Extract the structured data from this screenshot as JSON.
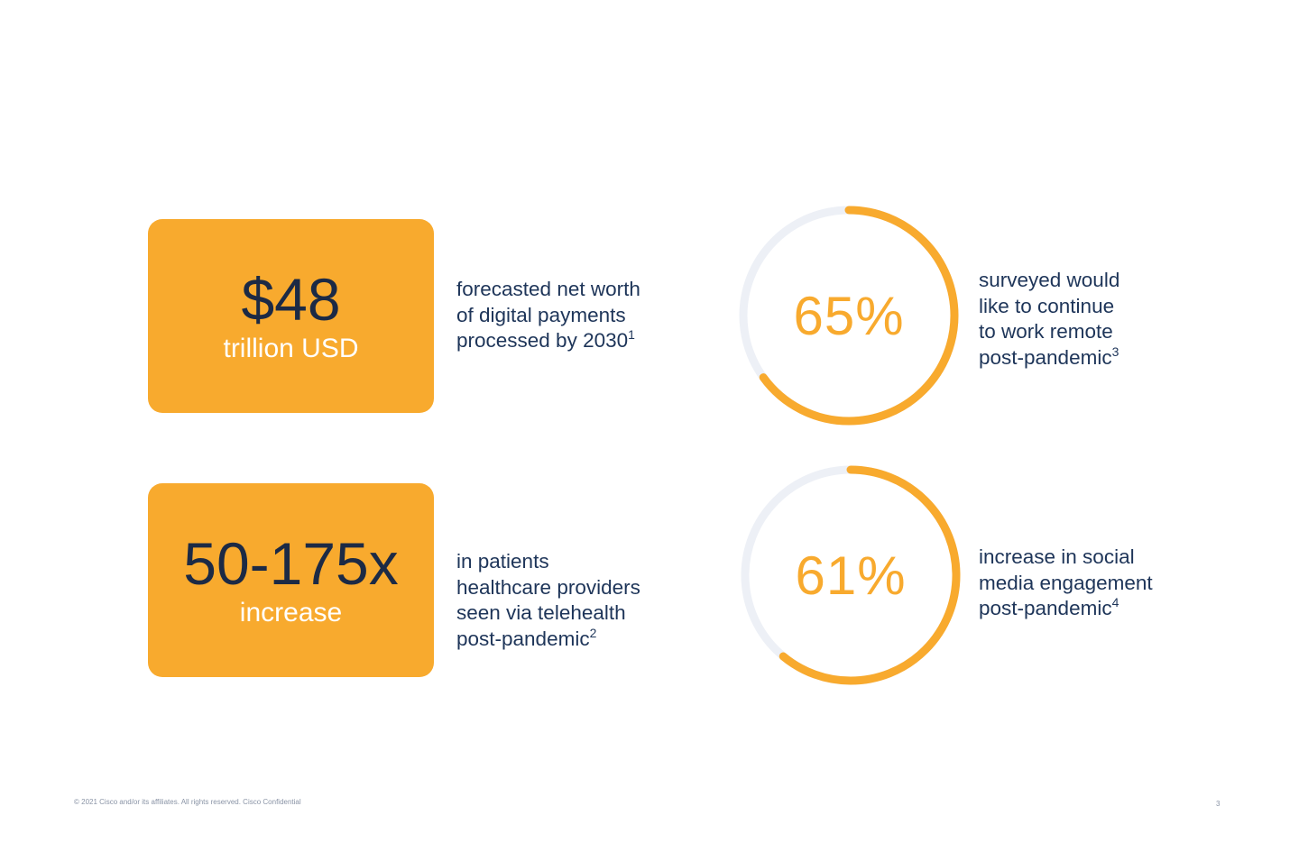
{
  "stats": [
    {
      "big": "$48",
      "sub": "trillion USD",
      "desc_lines": [
        "forecasted net worth",
        "of digital payments",
        "processed by 2030"
      ],
      "footnote": "1"
    },
    {
      "big": "50-175x",
      "sub": "increase",
      "desc_lines": [
        "in patients",
        "healthcare providers",
        "seen via telehealth",
        "post-pandemic"
      ],
      "footnote": "2"
    }
  ],
  "rings": [
    {
      "percent_label": "65%",
      "value": 65,
      "desc_lines": [
        "surveyed would",
        "like to continue",
        "to work remote",
        "post-pandemic"
      ],
      "footnote": "3"
    },
    {
      "percent_label": "61%",
      "value": 61,
      "desc_lines": [
        "increase in social",
        "media engagement",
        "post-pandemic"
      ],
      "footnote": "4"
    }
  ],
  "footer": {
    "copyright": "© 2021  Cisco and/or its affiliates. All rights reserved.   Cisco Confidential",
    "page_number": "3"
  },
  "colors": {
    "accent": "#f8aa2e",
    "track": "#edf0f6",
    "navy": "#1e3559"
  }
}
